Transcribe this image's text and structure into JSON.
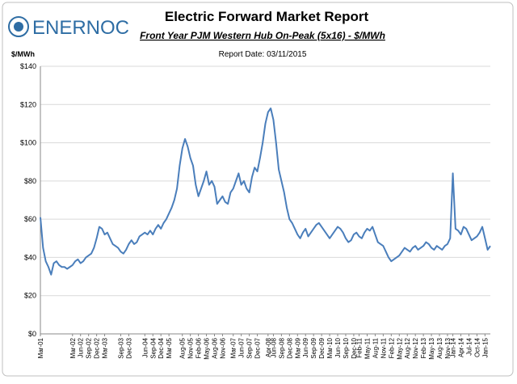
{
  "logo": "ENERNOC",
  "chart_data": {
    "type": "line",
    "title": "Electric Forward Market Report",
    "subtitle": "Front Year PJM Western Hub On-Peak (5x16) - $/MWh",
    "annotation": "Report Date: 03/11/2015",
    "y_label": "$/MWh",
    "categories": [
      "Mar-01",
      null,
      null,
      null,
      null,
      null,
      null,
      null,
      null,
      null,
      null,
      null,
      "Mar-02",
      null,
      null,
      "Jun-02",
      null,
      null,
      "Sep-02",
      null,
      null,
      "Dec-02",
      null,
      null,
      "Mar-03",
      null,
      null,
      null,
      null,
      null,
      "Sep-03",
      null,
      null,
      "Dec-03",
      null,
      null,
      null,
      null,
      null,
      "Jun-04",
      null,
      null,
      "Sep-04",
      null,
      null,
      "Dec-04",
      null,
      null,
      "Mar-05",
      null,
      null,
      null,
      null,
      "Aug-05",
      null,
      null,
      "Nov-05",
      null,
      null,
      "Feb-06",
      null,
      null,
      "May-06",
      null,
      null,
      "Aug-06",
      null,
      null,
      "Nov-06",
      null,
      null,
      null,
      "Mar-07",
      null,
      null,
      "Jun-07",
      null,
      null,
      "Sep-07",
      null,
      null,
      "Dec-07",
      null,
      null,
      null,
      "Apr-08",
      null,
      "Jun-08",
      null,
      null,
      "Sep-08",
      null,
      null,
      "Dec-08",
      null,
      null,
      "Mar-09",
      null,
      null,
      "Jun-09",
      null,
      null,
      "Sep-09",
      null,
      null,
      "Dec-09",
      null,
      null,
      "Mar-10",
      null,
      null,
      "Jun-10",
      null,
      null,
      "Sep-10",
      null,
      null,
      "Dec-10",
      null,
      "Feb-11",
      null,
      null,
      "May-11",
      null,
      null,
      "Aug-11",
      null,
      null,
      "Nov-11",
      null,
      null,
      "Feb-12",
      null,
      null,
      "May-12",
      null,
      null,
      "Aug-12",
      null,
      null,
      "Nov-12",
      null,
      null,
      "Feb-13",
      null,
      null,
      "May-13",
      null,
      null,
      "Aug-13",
      null,
      null,
      "Nov-13",
      null,
      "Jan-14",
      null,
      null,
      "Apr-14",
      null,
      null,
      "Jul-14",
      null,
      null,
      "Oct-14",
      null,
      null,
      "Jan-15",
      null,
      null
    ],
    "series": [
      {
        "name": "PJM Western Hub On-Peak",
        "color": "#4a7ebb",
        "values": [
          61,
          45,
          38,
          35,
          31,
          37,
          38,
          36,
          35,
          35,
          34,
          35,
          36,
          38,
          39,
          37,
          38,
          40,
          41,
          42,
          45,
          50,
          56,
          55,
          52,
          53,
          50,
          47,
          46,
          45,
          43,
          42,
          44,
          47,
          49,
          47,
          48,
          51,
          52,
          53,
          52,
          54,
          52,
          55,
          57,
          55,
          58,
          60,
          63,
          66,
          70,
          76,
          88,
          97,
          102,
          98,
          92,
          88,
          78,
          72,
          76,
          80,
          85,
          78,
          80,
          77,
          68,
          70,
          72,
          69,
          68,
          74,
          76,
          80,
          84,
          78,
          80,
          76,
          74,
          82,
          87,
          85,
          92,
          100,
          110,
          116,
          118,
          112,
          100,
          86,
          80,
          74,
          66,
          60,
          58,
          55,
          52,
          50,
          53,
          55,
          51,
          53,
          55,
          57,
          58,
          56,
          54,
          52,
          50,
          52,
          54,
          56,
          55,
          53,
          50,
          48,
          49,
          52,
          53,
          51,
          50,
          53,
          55,
          54,
          56,
          52,
          48,
          47,
          46,
          43,
          40,
          38,
          39,
          40,
          41,
          43,
          45,
          44,
          43,
          45,
          46,
          44,
          45,
          46,
          48,
          47,
          45,
          44,
          46,
          45,
          44,
          46,
          47,
          50,
          84,
          55,
          54,
          52,
          56,
          55,
          52,
          49,
          50,
          51,
          53,
          56,
          50,
          44,
          46
        ]
      }
    ],
    "ylim": [
      0,
      140
    ],
    "yticks": [
      {
        "value": 0,
        "label": "$0"
      },
      {
        "value": 20,
        "label": "$20"
      },
      {
        "value": 40,
        "label": "$40"
      },
      {
        "value": 60,
        "label": "$60"
      },
      {
        "value": 80,
        "label": "$80"
      },
      {
        "value": 100,
        "label": "$100"
      },
      {
        "value": 120,
        "label": "$120"
      },
      {
        "value": 140,
        "label": "$140"
      }
    ],
    "grid": true
  }
}
